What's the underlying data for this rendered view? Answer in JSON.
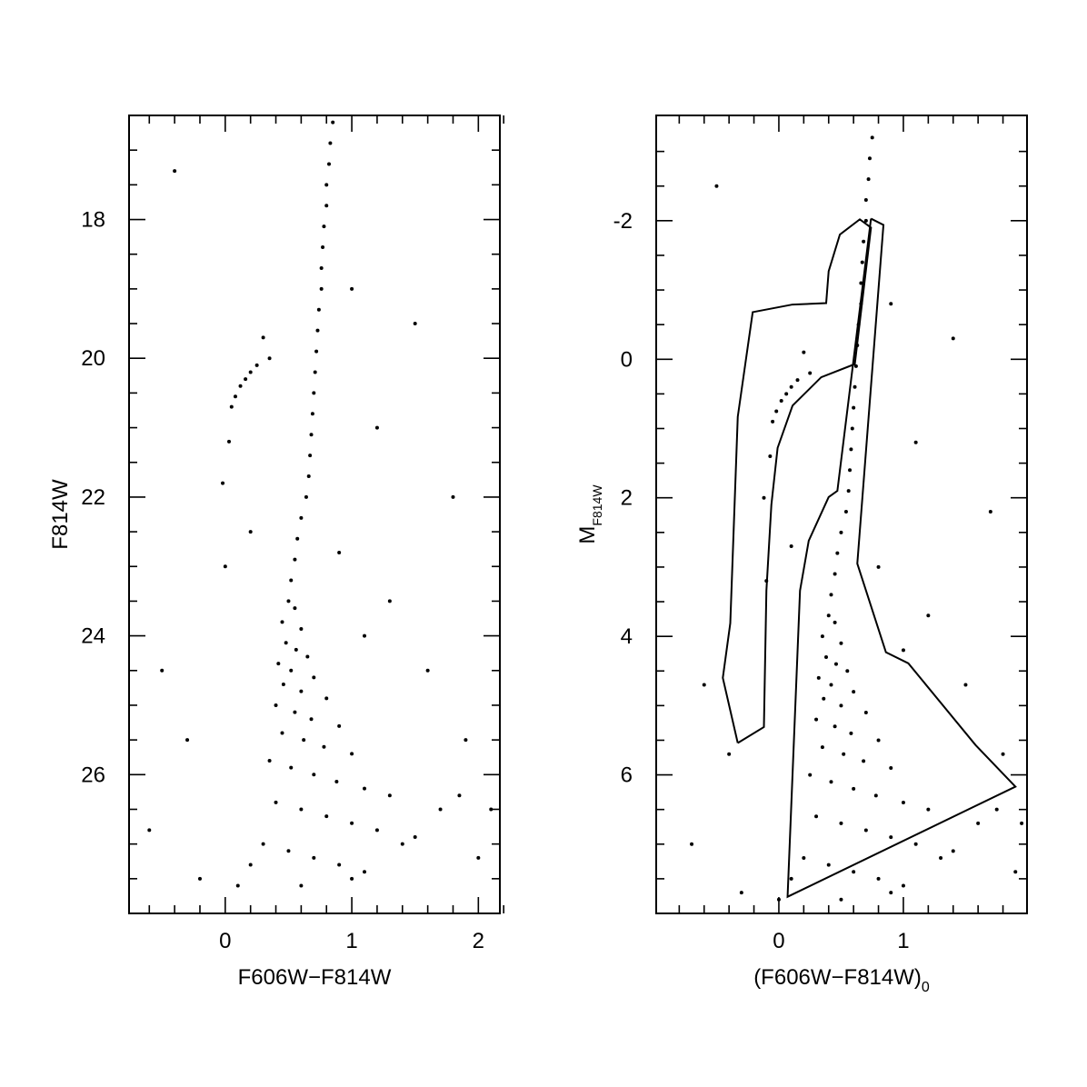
{
  "chart_data": [
    {
      "type": "scatter",
      "xlabel": "F606W−F814W",
      "ylabel": "F814W",
      "color": "#000000",
      "xlim": [
        -0.76,
        2.17
      ],
      "ylim": [
        16.5,
        28
      ],
      "y_inverted": true,
      "xticks": [
        0,
        1,
        2
      ],
      "yticks": [
        18,
        20,
        22,
        24,
        26
      ],
      "xminor": [
        -0.6,
        -0.4,
        -0.2,
        0.2,
        0.4,
        0.6,
        0.8,
        1.2,
        1.4,
        1.6,
        1.8,
        2.2
      ],
      "yminor": [
        17,
        17.5,
        18.5,
        19,
        19.5,
        20.5,
        21,
        21.5,
        22.5,
        23,
        23.5,
        24.5,
        25,
        25.5,
        26.5,
        27,
        27.5
      ],
      "x": [
        0.85,
        0.83,
        0.82,
        0.8,
        0.8,
        0.78,
        0.77,
        0.76,
        0.76,
        0.74,
        0.73,
        0.72,
        0.71,
        0.7,
        0.69,
        0.68,
        0.67,
        0.66,
        0.64,
        0.6,
        0.57,
        0.55,
        0.52,
        0.05,
        0.08,
        0.12,
        0.16,
        0.2,
        0.25,
        0.03,
        -0.02,
        0.35,
        0.5,
        0.55,
        0.45,
        0.6,
        0.48,
        0.56,
        0.65,
        0.42,
        0.52,
        0.7,
        0.46,
        0.6,
        0.8,
        0.4,
        0.55,
        0.68,
        0.9,
        0.45,
        0.62,
        0.78,
        1.0,
        0.35,
        0.52,
        0.7,
        0.88,
        1.1,
        1.3,
        0.4,
        0.6,
        0.8,
        1.0,
        1.2,
        1.5,
        0.3,
        0.5,
        0.7,
        0.9,
        1.1,
        1.4,
        1.7,
        1.85,
        0.2,
        0.1,
        0.6,
        1.0,
        -0.5,
        -0.3,
        -0.6,
        0.0,
        0.2,
        1.3,
        1.6,
        1.9,
        2.1,
        1.2,
        1.5,
        -0.4,
        1.0,
        0.3,
        1.8,
        -0.2,
        2.0,
        0.9,
        1.1
      ],
      "values": [
        16.6,
        16.9,
        17.2,
        17.5,
        17.8,
        18.1,
        18.4,
        18.7,
        19.0,
        19.3,
        19.6,
        19.9,
        20.2,
        20.5,
        20.8,
        21.1,
        21.4,
        21.7,
        22.0,
        22.3,
        22.6,
        22.9,
        23.2,
        20.7,
        20.55,
        20.4,
        20.3,
        20.2,
        20.1,
        21.2,
        21.8,
        20.0,
        23.5,
        23.6,
        23.8,
        23.9,
        24.1,
        24.2,
        24.3,
        24.4,
        24.5,
        24.6,
        24.7,
        24.8,
        24.9,
        25.0,
        25.1,
        25.2,
        25.3,
        25.4,
        25.5,
        25.6,
        25.7,
        25.8,
        25.9,
        26.0,
        26.1,
        26.2,
        26.3,
        26.4,
        26.5,
        26.6,
        26.7,
        26.8,
        26.9,
        27.0,
        27.1,
        27.2,
        27.3,
        27.4,
        27.0,
        26.5,
        26.3,
        27.3,
        27.6,
        27.6,
        27.5,
        24.5,
        25.5,
        26.8,
        23.0,
        22.5,
        23.5,
        24.5,
        25.5,
        26.5,
        21.0,
        19.5,
        17.3,
        19.0,
        19.7,
        22.0,
        27.5,
        27.2,
        22.8,
        24.0
      ]
    },
    {
      "type": "scatter",
      "xlabel": "(F606W−F814W)",
      "xlabel_sub": "0",
      "ylabel": "M",
      "ylabel_sub": "F814W",
      "color": "#000000",
      "xlim": [
        -0.985,
        1.993
      ],
      "ylim": [
        -3.52,
        8
      ],
      "y_inverted": true,
      "xticks": [
        0,
        1
      ],
      "yticks": [
        -2,
        0,
        2,
        4,
        6
      ],
      "xminor": [
        -0.8,
        -0.6,
        -0.4,
        -0.2,
        0.2,
        0.4,
        0.6,
        0.8,
        1.2,
        1.4,
        1.6,
        1.8
      ],
      "yminor": [
        -3,
        -2.5,
        -1.5,
        -1,
        -0.5,
        0.5,
        1,
        1.5,
        2.5,
        3,
        3.5,
        4.5,
        5,
        5.5,
        6.5,
        7,
        7.5
      ],
      "x": [
        0.75,
        0.73,
        0.72,
        0.7,
        0.7,
        0.68,
        0.67,
        0.66,
        0.66,
        0.64,
        0.63,
        0.62,
        0.61,
        0.6,
        0.59,
        0.58,
        0.57,
        0.56,
        0.54,
        0.5,
        0.47,
        0.45,
        0.42,
        -0.05,
        -0.02,
        0.02,
        0.06,
        0.1,
        0.15,
        -0.07,
        -0.12,
        0.25,
        0.4,
        0.45,
        0.35,
        0.5,
        0.38,
        0.46,
        0.55,
        0.32,
        0.42,
        0.6,
        0.36,
        0.5,
        0.7,
        0.3,
        0.45,
        0.58,
        0.8,
        0.35,
        0.52,
        0.68,
        0.9,
        0.25,
        0.42,
        0.6,
        0.78,
        1.0,
        1.2,
        0.3,
        0.5,
        0.7,
        0.9,
        1.1,
        1.4,
        0.2,
        0.4,
        0.6,
        0.8,
        1.0,
        1.3,
        1.6,
        1.75,
        0.1,
        0.0,
        0.5,
        0.9,
        -0.6,
        -0.4,
        -0.7,
        -0.1,
        0.1,
        1.2,
        1.5,
        1.8,
        1.95,
        1.1,
        1.4,
        -0.5,
        0.9,
        0.2,
        1.7,
        -0.3,
        1.9,
        0.8,
        1.0
      ],
      "values": [
        -3.2,
        -2.9,
        -2.6,
        -2.3,
        -2.0,
        -1.7,
        -1.4,
        -1.1,
        -0.8,
        -0.5,
        -0.2,
        0.1,
        0.4,
        0.7,
        1.0,
        1.3,
        1.6,
        1.9,
        2.2,
        2.5,
        2.8,
        3.1,
        3.4,
        0.9,
        0.75,
        0.6,
        0.5,
        0.4,
        0.3,
        1.4,
        2.0,
        0.2,
        3.7,
        3.8,
        4.0,
        4.1,
        4.3,
        4.4,
        4.5,
        4.6,
        4.7,
        4.8,
        4.9,
        5.0,
        5.1,
        5.2,
        5.3,
        5.4,
        5.5,
        5.6,
        5.7,
        5.8,
        5.9,
        6.0,
        6.1,
        6.2,
        6.3,
        6.4,
        6.5,
        6.6,
        6.7,
        6.8,
        6.9,
        7.0,
        7.1,
        7.2,
        7.3,
        7.4,
        7.5,
        7.6,
        7.2,
        6.7,
        6.5,
        7.5,
        7.8,
        7.8,
        7.7,
        4.7,
        5.7,
        7.0,
        3.2,
        2.7,
        3.7,
        4.7,
        5.7,
        6.7,
        1.2,
        -0.3,
        -2.5,
        -0.8,
        -0.1,
        2.2,
        7.7,
        7.4,
        3.0,
        4.2
      ],
      "polygons": [
        {
          "x": [
            -0.33,
            -0.45,
            -0.39,
            -0.33,
            -0.21,
            0.11,
            0.38,
            0.4,
            0.49,
            0.65,
            0.74,
            0.61,
            0.34,
            0.11,
            -0.01,
            -0.06,
            -0.1,
            -0.12,
            -0.33
          ],
          "y": [
            5.54,
            4.6,
            3.81,
            0.83,
            -0.68,
            -0.79,
            -0.81,
            -1.27,
            -1.8,
            -2.02,
            -1.9,
            0.07,
            0.26,
            0.67,
            1.28,
            2.1,
            3.34,
            5.31,
            5.54
          ]
        },
        {
          "x": [
            0.74,
            0.84,
            0.63,
            0.86,
            1.04,
            1.58,
            1.9,
            0.07,
            0.17,
            0.24,
            0.4,
            0.47,
            0.74
          ],
          "y": [
            -2.03,
            -1.94,
            2.95,
            4.23,
            4.39,
            5.57,
            6.17,
            7.76,
            3.34,
            2.62,
            1.99,
            1.9,
            -2.03
          ]
        }
      ]
    }
  ]
}
